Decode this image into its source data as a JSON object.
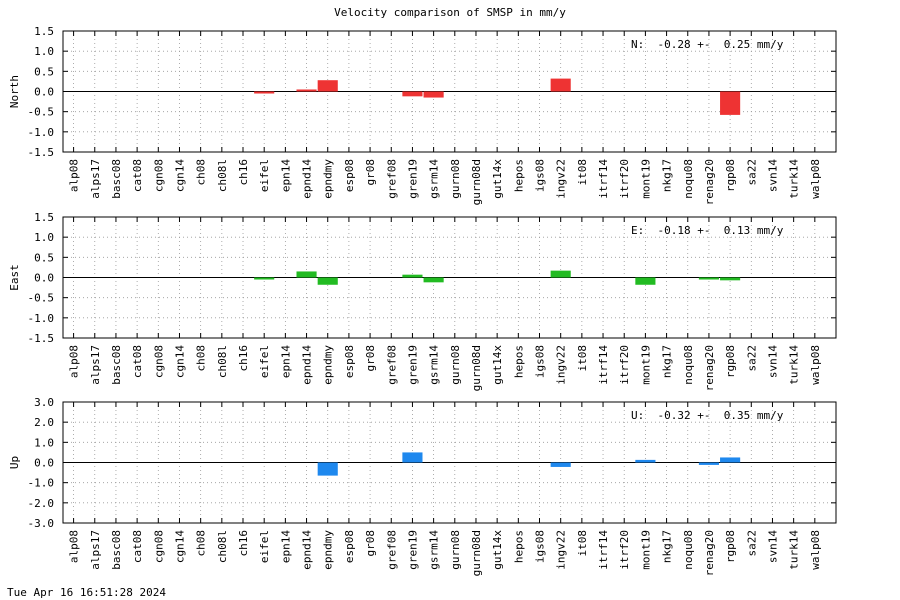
{
  "title": "Velocity comparison of SMSP in mm/y",
  "timestamp": "Tue Apr 16 16:51:28 2024",
  "colors": {
    "north": "#ee3333",
    "east": "#22bb22",
    "up": "#1e88ee",
    "grid": "#999999"
  },
  "chart_data": [
    {
      "type": "bar",
      "ylabel": "North",
      "ylim": [
        -1.5,
        1.5
      ],
      "yticks": [
        "1.5",
        "1.0",
        "0.5",
        "0.0",
        "-0.5",
        "-1.0",
        "-1.5"
      ],
      "ytick_values": [
        1.5,
        1.0,
        0.5,
        0.0,
        -0.5,
        -1.0,
        -1.5
      ],
      "grid": true,
      "annotation": "N:  -0.28 +-  0.25 mm/y",
      "categories": [
        "alp08",
        "alps17",
        "basc08",
        "cat08",
        "cgn08",
        "cgn14",
        "ch08",
        "ch08l",
        "ch16",
        "eifel",
        "epn14",
        "epnd14",
        "epndmy",
        "esp08",
        "gr08",
        "gref08",
        "gren19",
        "gsrm14",
        "gurn08",
        "gurn08d",
        "gut14x",
        "hepos",
        "igs08",
        "ingv22",
        "it08",
        "itrf14",
        "itrf20",
        "mont19",
        "nkg17",
        "noqu08",
        "renag20",
        "rgp08",
        "sa22",
        "svn14",
        "turk14",
        "walp08"
      ],
      "values": [
        0,
        0,
        0,
        0,
        0,
        0,
        0,
        0,
        0,
        -0.05,
        0,
        0.05,
        0.28,
        0,
        0,
        0,
        -0.12,
        -0.15,
        0,
        0,
        0,
        0,
        0,
        0.32,
        0,
        0,
        0,
        0,
        0,
        0,
        0,
        -0.58,
        0,
        0,
        0,
        0
      ]
    },
    {
      "type": "bar",
      "ylabel": "East",
      "ylim": [
        -1.5,
        1.5
      ],
      "yticks": [
        "1.5",
        "1.0",
        "0.5",
        "0.0",
        "-0.5",
        "-1.0",
        "-1.5"
      ],
      "ytick_values": [
        1.5,
        1.0,
        0.5,
        0.0,
        -0.5,
        -1.0,
        -1.5
      ],
      "grid": true,
      "annotation": "E:  -0.18 +-  0.13 mm/y",
      "categories": [
        "alp08",
        "alps17",
        "basc08",
        "cat08",
        "cgn08",
        "cgn14",
        "ch08",
        "ch08l",
        "ch16",
        "eifel",
        "epn14",
        "epnd14",
        "epndmy",
        "esp08",
        "gr08",
        "gref08",
        "gren19",
        "gsrm14",
        "gurn08",
        "gurn08d",
        "gut14x",
        "hepos",
        "igs08",
        "ingv22",
        "it08",
        "itrf14",
        "itrf20",
        "mont19",
        "nkg17",
        "noqu08",
        "renag20",
        "rgp08",
        "sa22",
        "svn14",
        "turk14",
        "walp08"
      ],
      "values": [
        0,
        0,
        0,
        0,
        0,
        0,
        0,
        0,
        0,
        -0.05,
        0,
        0.15,
        -0.18,
        0,
        0,
        0,
        0.07,
        -0.12,
        0,
        0,
        0,
        0,
        0,
        0.17,
        0,
        0,
        0,
        -0.18,
        0,
        0,
        -0.05,
        -0.07,
        0,
        0,
        0,
        0
      ]
    },
    {
      "type": "bar",
      "ylabel": "Up",
      "ylim": [
        -3.0,
        3.0
      ],
      "yticks": [
        "3.0",
        "2.0",
        "1.0",
        "0.0",
        "-1.0",
        "-2.0",
        "-3.0"
      ],
      "ytick_values": [
        3.0,
        2.0,
        1.0,
        0.0,
        -1.0,
        -2.0,
        -3.0
      ],
      "grid": true,
      "annotation": "U:  -0.32 +-  0.35 mm/y",
      "categories": [
        "alp08",
        "alps17",
        "basc08",
        "cat08",
        "cgn08",
        "cgn14",
        "ch08",
        "ch08l",
        "ch16",
        "eifel",
        "epn14",
        "epnd14",
        "epndmy",
        "esp08",
        "gr08",
        "gref08",
        "gren19",
        "gsrm14",
        "gurn08",
        "gurn08d",
        "gut14x",
        "hepos",
        "igs08",
        "ingv22",
        "it08",
        "itrf14",
        "itrf20",
        "mont19",
        "nkg17",
        "noqu08",
        "renag20",
        "rgp08",
        "sa22",
        "svn14",
        "turk14",
        "walp08"
      ],
      "values": [
        0,
        0,
        0,
        0,
        0,
        0,
        0,
        0,
        0,
        0,
        0,
        0,
        -0.65,
        0,
        0,
        0,
        0.5,
        0,
        0,
        0,
        0,
        0,
        0,
        -0.22,
        0,
        0,
        0,
        0.13,
        0,
        0,
        -0.12,
        0.25,
        0,
        0,
        0,
        0
      ]
    }
  ]
}
